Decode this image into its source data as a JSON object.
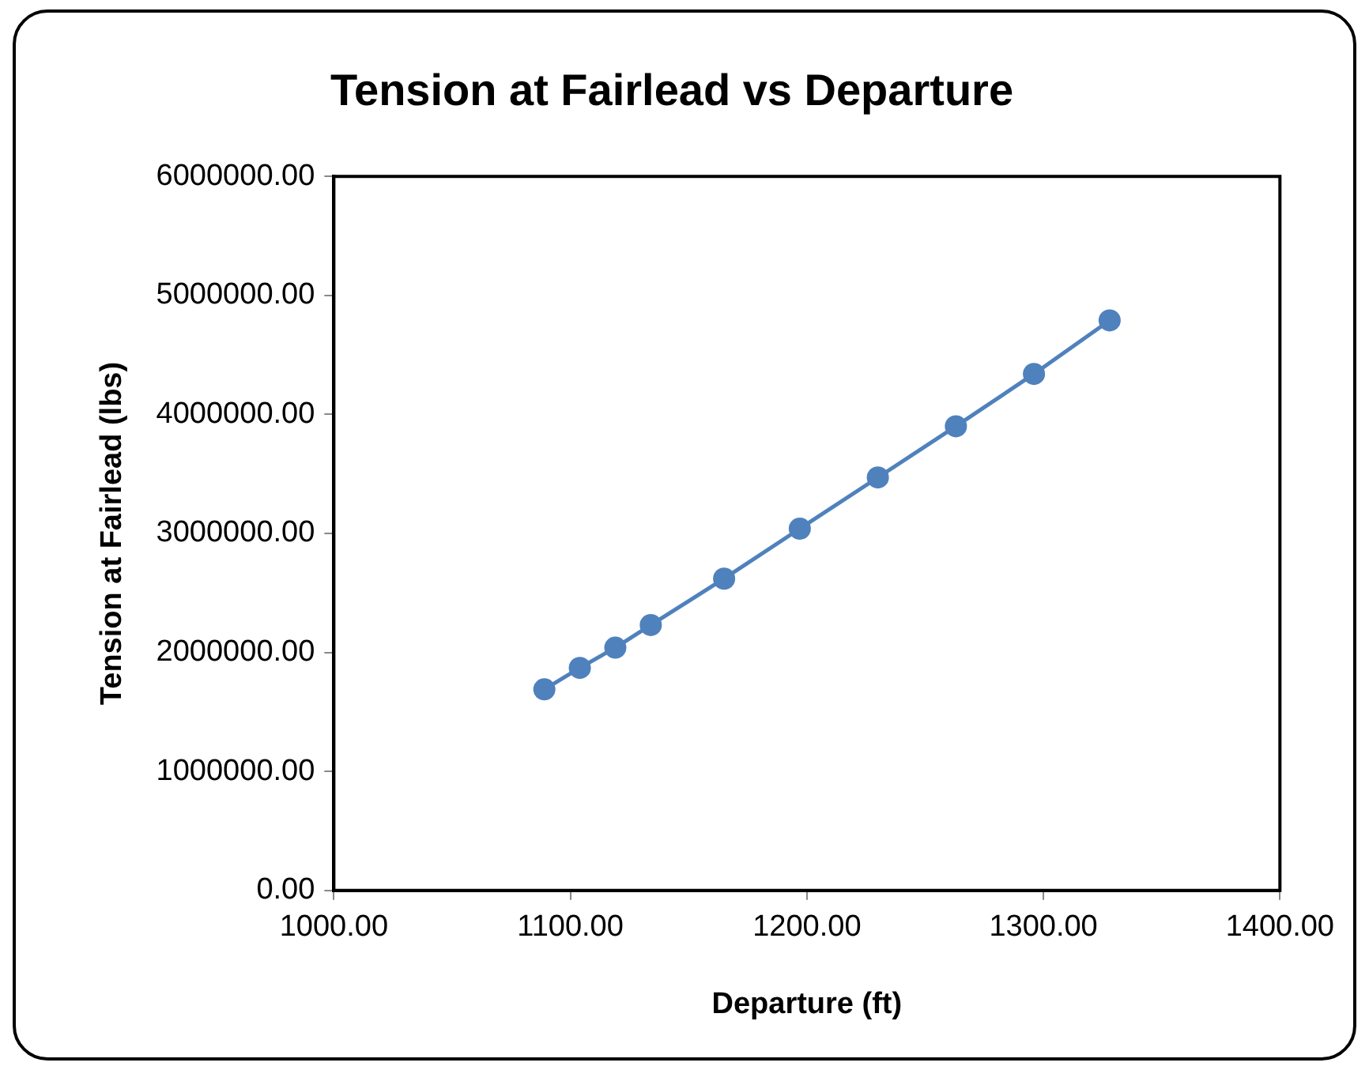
{
  "chart_data": {
    "type": "scatter",
    "title": "Tension at Fairlead vs Departure",
    "xlabel": "Departure (ft)",
    "ylabel": "Tension at Fairlead (lbs)",
    "x": [
      1089,
      1104,
      1119,
      1134,
      1165,
      1197,
      1230,
      1263,
      1296,
      1328
    ],
    "series": [
      {
        "type": "line",
        "color": "#4f81bd",
        "values": [
          1690000,
          1870000,
          2040000,
          2230000,
          2620000,
          3040000,
          3470000,
          3900000,
          4340000,
          4790000
        ]
      }
    ],
    "marker": "circle",
    "line_style": "solid",
    "legend": false,
    "xlim": [
      1000,
      1400
    ],
    "xticks": [
      {
        "value": 1000,
        "label": "1000.00"
      },
      {
        "value": 1100,
        "label": "1100.00"
      },
      {
        "value": 1200,
        "label": "1200.00"
      },
      {
        "value": 1300,
        "label": "1300.00"
      },
      {
        "value": 1400,
        "label": "1400.00"
      }
    ],
    "ylim": [
      0,
      6000000
    ],
    "yticks": [
      {
        "value": 0,
        "label": "0.00"
      },
      {
        "value": 1000000,
        "label": "1000000.00"
      },
      {
        "value": 2000000,
        "label": "2000000.00"
      },
      {
        "value": 3000000,
        "label": "3000000.00"
      },
      {
        "value": 4000000,
        "label": "4000000.00"
      },
      {
        "value": 5000000,
        "label": "5000000.00"
      },
      {
        "value": 6000000,
        "label": "6000000.00"
      }
    ]
  }
}
